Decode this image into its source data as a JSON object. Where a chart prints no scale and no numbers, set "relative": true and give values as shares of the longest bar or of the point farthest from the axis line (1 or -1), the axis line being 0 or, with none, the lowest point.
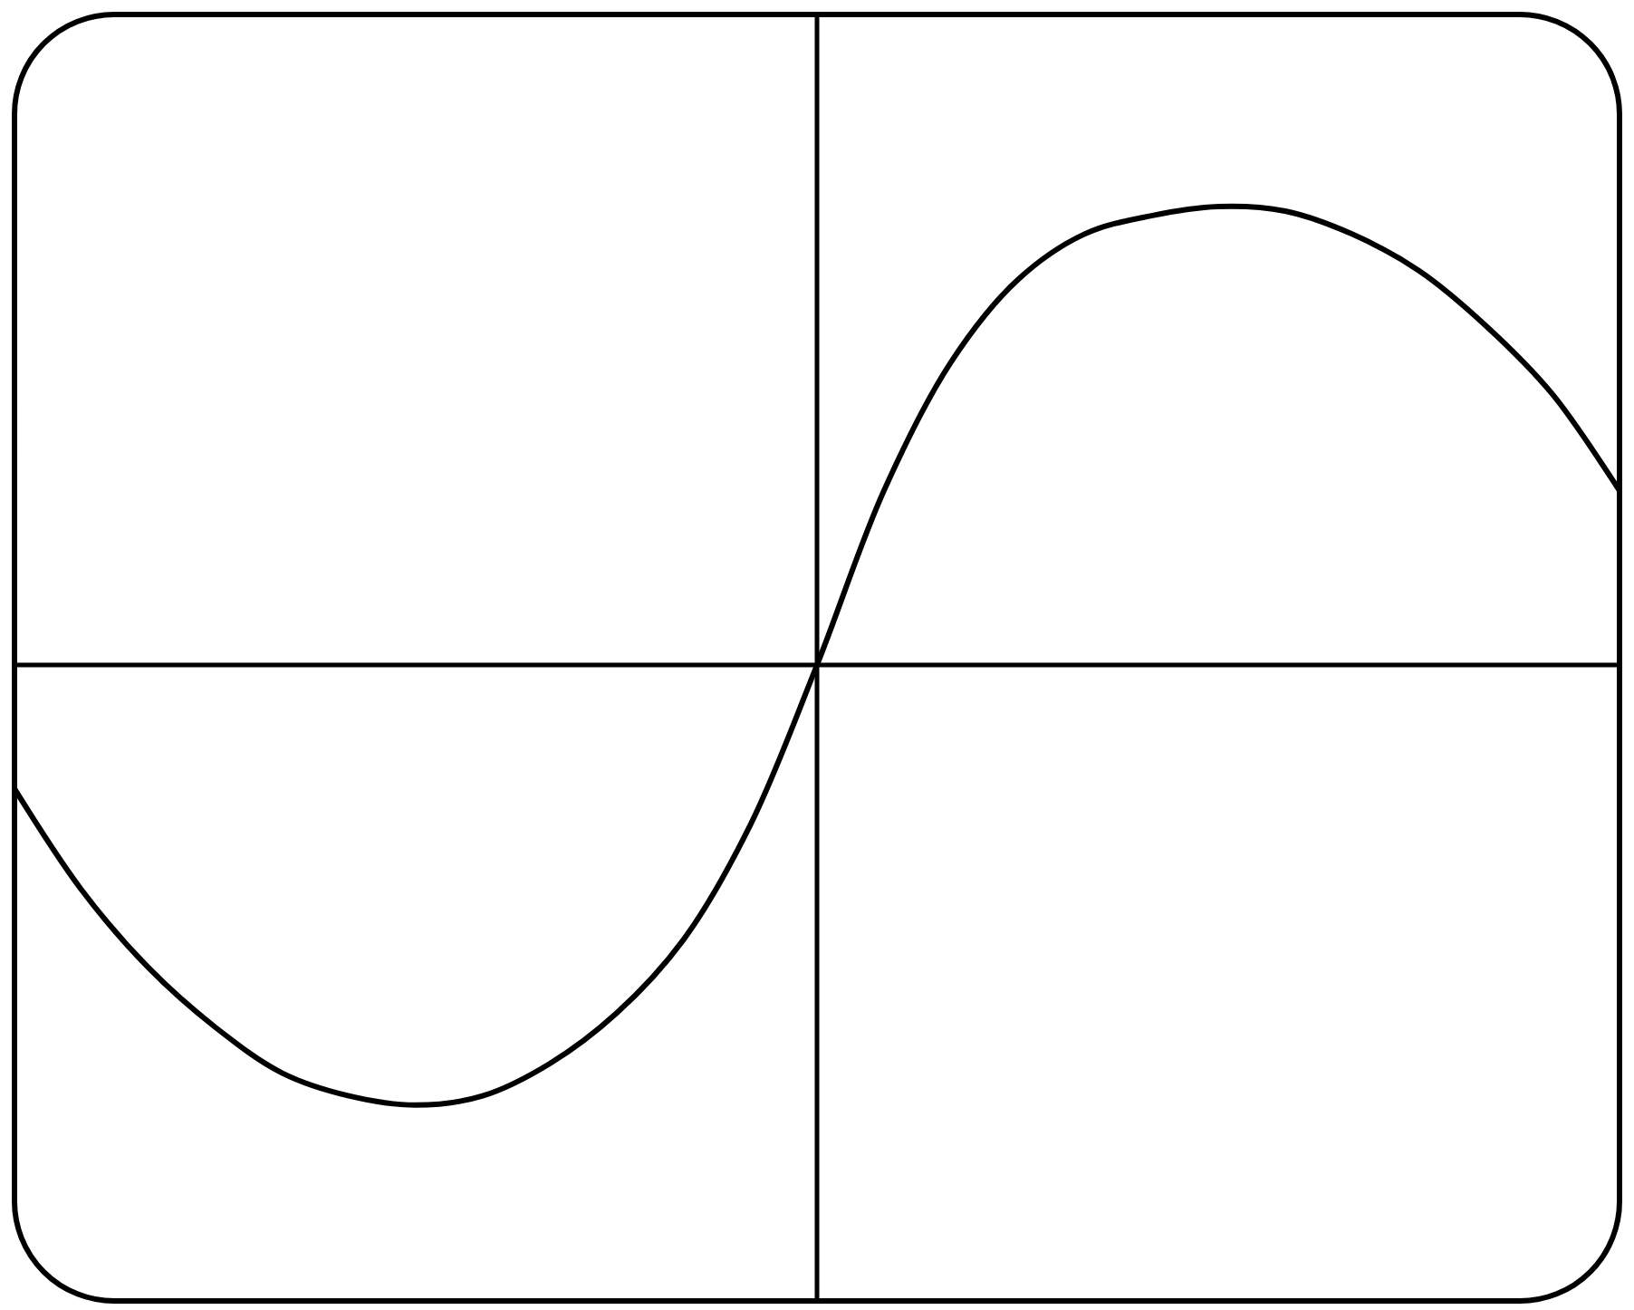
{
  "chart_data": {
    "type": "line",
    "relative": true,
    "color": "#000000",
    "categories": [
      null,
      null,
      null,
      null,
      null,
      null,
      null,
      null,
      null,
      null,
      null,
      null,
      null,
      null,
      null,
      null,
      null,
      null,
      null,
      null,
      null,
      null,
      null,
      null,
      null
    ],
    "values": [
      -0.27,
      -0.49,
      -0.66,
      -0.79,
      -0.89,
      -0.94,
      -0.96,
      -0.94,
      -0.87,
      -0.76,
      -0.6,
      -0.35,
      0,
      0.38,
      0.66,
      0.84,
      0.94,
      0.98,
      1,
      0.99,
      0.94,
      0.86,
      0.74,
      0.59,
      0.38
    ]
  }
}
